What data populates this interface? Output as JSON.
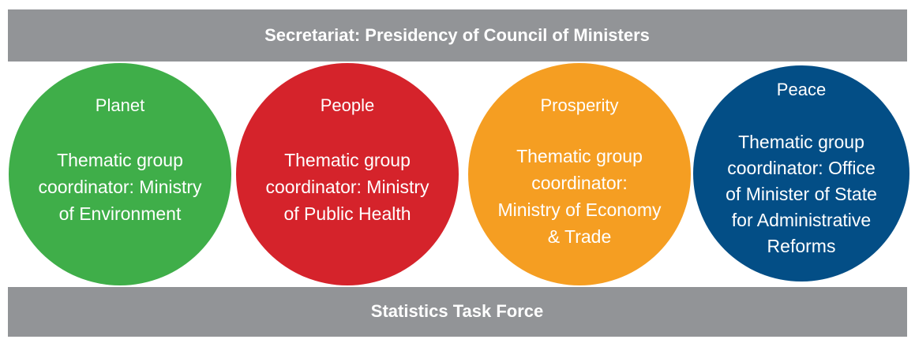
{
  "header": {
    "title": "Secretariat: Presidency of Council of Ministers"
  },
  "nodes": [
    {
      "title": "Planet",
      "lines": [
        "Thematic group",
        "coordinator: Ministry",
        "of Environment"
      ]
    },
    {
      "title": "People",
      "lines": [
        "Thematic group",
        "coordinator: Ministry",
        "of Public Health"
      ]
    },
    {
      "title": "Prosperity",
      "lines": [
        "Thematic group",
        "coordinator:",
        "Ministry of Economy",
        "& Trade"
      ]
    },
    {
      "title": "Peace",
      "lines": [
        "Thematic group",
        "coordinator: Office",
        "of Minister of State",
        "for Administrative",
        "Reforms"
      ]
    }
  ],
  "footer": {
    "title": "Statistics Task Force"
  }
}
